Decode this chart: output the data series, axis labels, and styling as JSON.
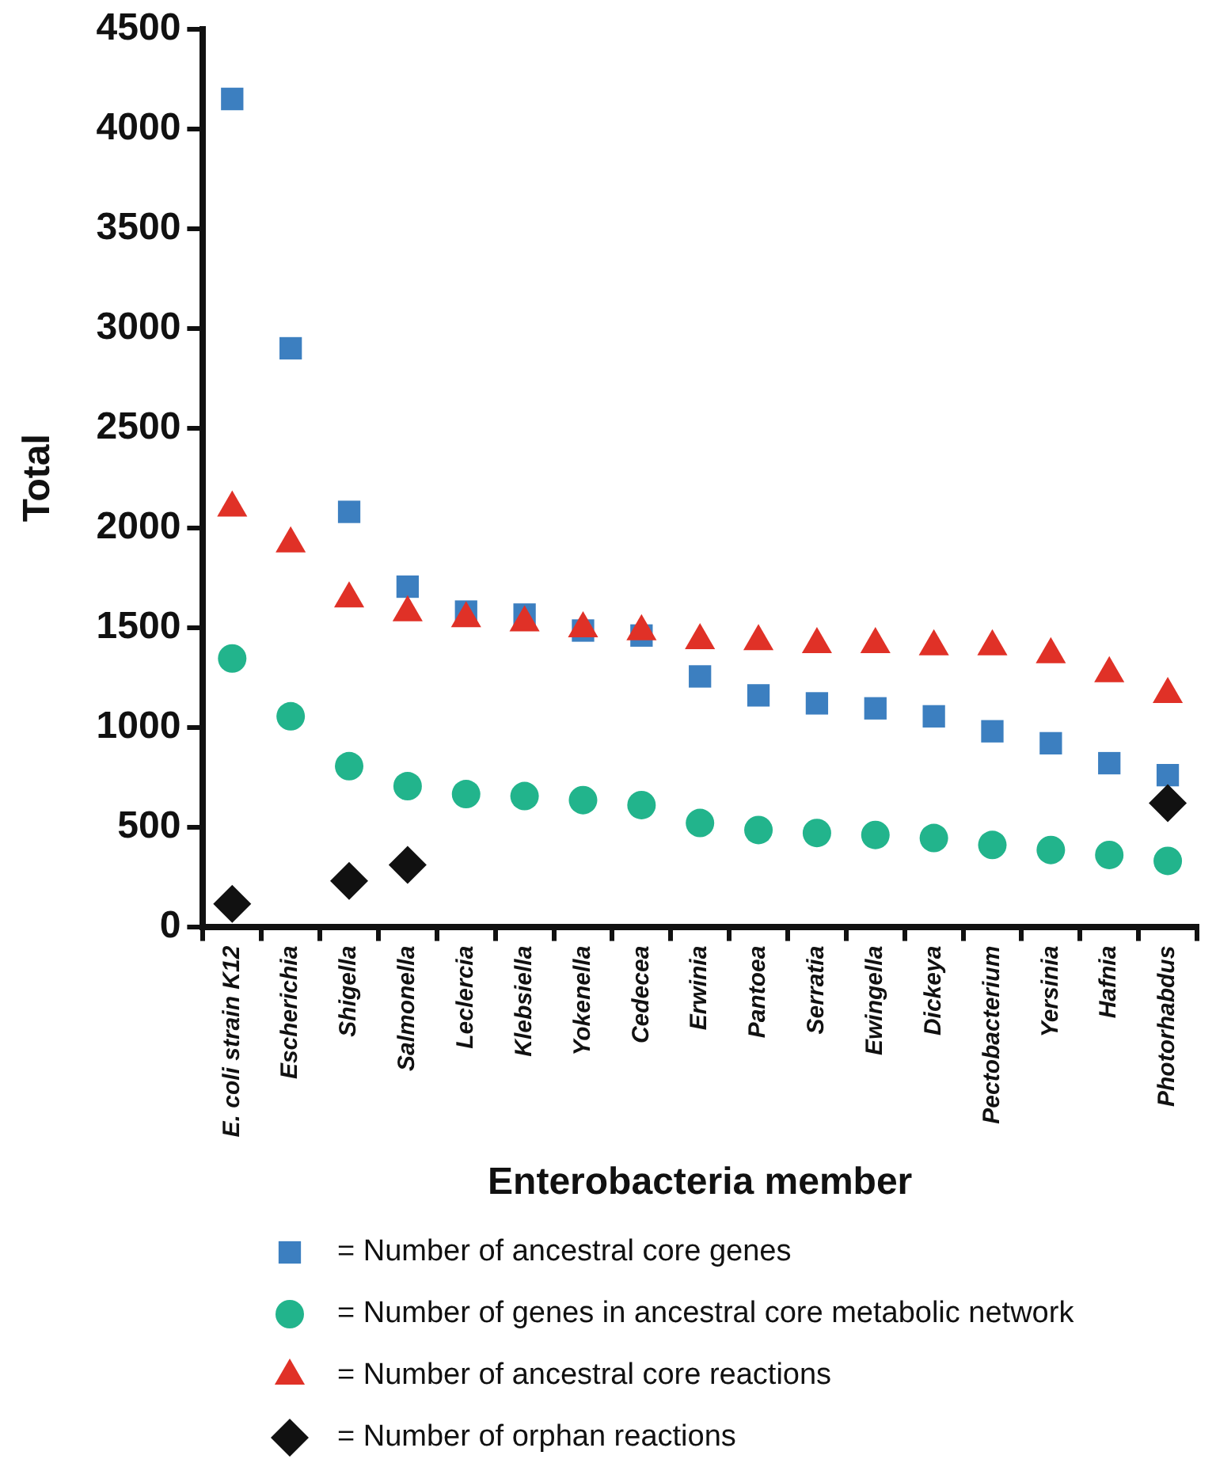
{
  "chart_data": {
    "type": "scatter",
    "xlabel": "Enterobacteria member",
    "ylabel": "Total",
    "categories": [
      "E. coli strain K12",
      "Escherichia",
      "Shigella",
      "Salmonella",
      "Leclercia",
      "Klebsiella",
      "Yokenella",
      "Cedecea",
      "Erwinia",
      "Pantoea",
      "Serratia",
      "Ewingella",
      "Dickeya",
      "Pectobacterium",
      "Yersinia",
      "Hafnia",
      "Photorhabdus"
    ],
    "series": [
      {
        "name": "= Number of ancestral core genes",
        "color": "#3c7fc0",
        "marker": "square",
        "values": [
          4150,
          2900,
          2080,
          1705,
          1580,
          1565,
          1485,
          1460,
          1255,
          1160,
          1120,
          1095,
          1055,
          980,
          920,
          820,
          760
        ]
      },
      {
        "name": "= Number of genes in ancestral core metabolic network",
        "color": "#22b48c",
        "marker": "circle",
        "values": [
          1345,
          1055,
          805,
          705,
          665,
          655,
          635,
          610,
          520,
          485,
          470,
          460,
          445,
          410,
          385,
          360,
          330
        ]
      },
      {
        "name": "= Number of ancestral core reactions",
        "color": "#e03127",
        "marker": "triangle",
        "values": [
          2100,
          1920,
          1645,
          1575,
          1545,
          1525,
          1495,
          1480,
          1435,
          1430,
          1415,
          1415,
          1405,
          1405,
          1365,
          1270,
          1165
        ]
      },
      {
        "name": "= Number of orphan reactions",
        "color": "#111111",
        "marker": "diamond",
        "values": [
          115,
          null,
          230,
          310,
          null,
          null,
          null,
          null,
          null,
          null,
          null,
          null,
          null,
          null,
          null,
          null,
          620
        ]
      }
    ],
    "ylim": [
      0,
      4500
    ],
    "yticks": [
      0,
      500,
      1000,
      1500,
      2000,
      2500,
      3000,
      3500,
      4000,
      4500
    ],
    "grid": false,
    "legend": "bottom"
  }
}
